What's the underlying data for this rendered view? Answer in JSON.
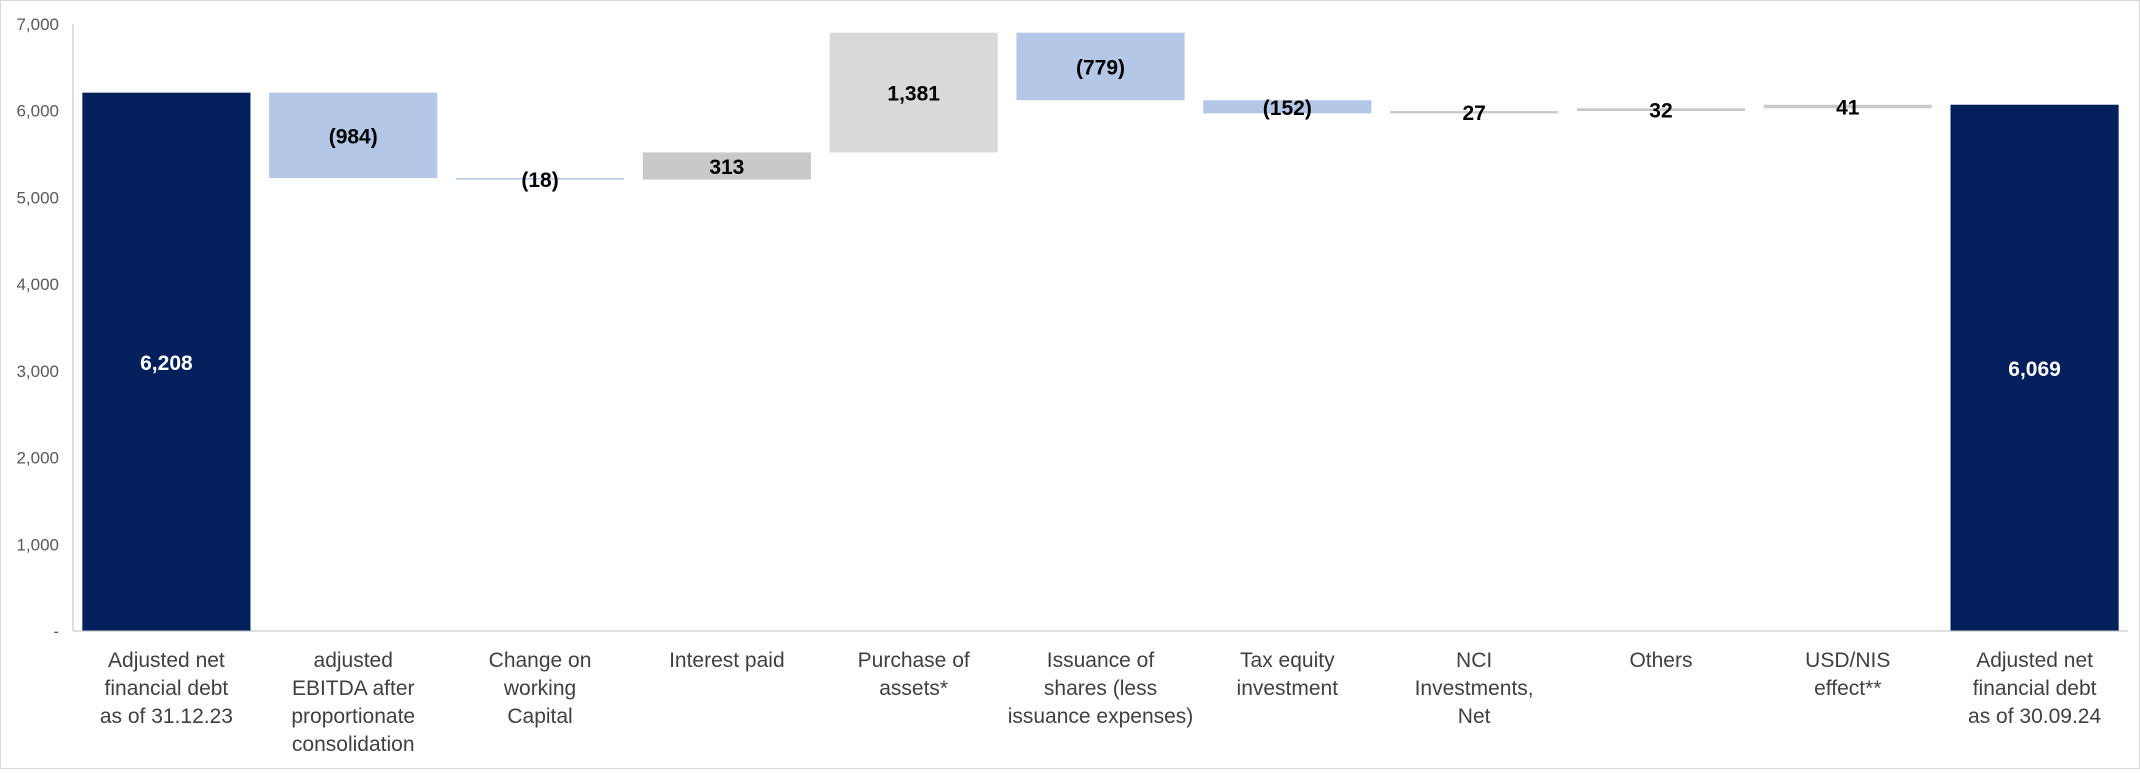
{
  "chart_data": {
    "type": "waterfall",
    "title": "",
    "xlabel": "",
    "ylabel": "",
    "ylim": [
      0,
      7000
    ],
    "yticks": [
      0,
      1000,
      2000,
      3000,
      4000,
      5000,
      6000,
      7000
    ],
    "ytick_labels": [
      "-",
      "1,000",
      "2,000",
      "3,000",
      "4,000",
      "5,000",
      "6,000",
      "7,000"
    ],
    "grid": false,
    "legend": "none",
    "steps": [
      {
        "label": "Adjusted net financial debt as of 31.12.23",
        "lines": [
          "Adjusted net",
          "financial debt",
          "as of 31.12.23"
        ],
        "kind": "total",
        "value": 6208,
        "display": "6,208"
      },
      {
        "label": "adjusted EBITDA after proportionate consolidation",
        "lines": [
          "adjusted",
          "EBITDA after",
          "proportionate",
          "consolidation"
        ],
        "kind": "decrease",
        "value": -984,
        "display": "(984)"
      },
      {
        "label": "Change on working Capital",
        "lines": [
          "Change on",
          "working",
          "Capital"
        ],
        "kind": "decrease",
        "value": -18,
        "display": "(18)"
      },
      {
        "label": "Interest paid",
        "lines": [
          "Interest paid"
        ],
        "kind": "increase",
        "value": 313,
        "display": "313"
      },
      {
        "label": "Purchase of assets*",
        "lines": [
          "Purchase of",
          "assets*"
        ],
        "kind": "increase",
        "value": 1381,
        "display": "1,381"
      },
      {
        "label": "Issuance of shares (less issuance expenses)",
        "lines": [
          "Issuance of",
          "shares (less",
          "issuance expenses)"
        ],
        "kind": "decrease",
        "value": -779,
        "display": "(779)"
      },
      {
        "label": "Tax equity investment",
        "lines": [
          "Tax equity",
          "investment"
        ],
        "kind": "decrease",
        "value": -152,
        "display": "(152)"
      },
      {
        "label": "NCI Investments, Net",
        "lines": [
          "NCI",
          "Investments,",
          "Net"
        ],
        "kind": "increase",
        "value": 27,
        "display": "27"
      },
      {
        "label": "Others",
        "lines": [
          "Others"
        ],
        "kind": "increase",
        "value": 32,
        "display": "32"
      },
      {
        "label": "USD/NIS effect**",
        "lines": [
          "USD/NIS",
          "effect**"
        ],
        "kind": "increase",
        "value": 41,
        "display": "41"
      },
      {
        "label": "Adjusted net financial debt as of 30.09.24",
        "lines": [
          "Adjusted net",
          "financial debt",
          "as of 30.09.24"
        ],
        "kind": "total",
        "value": 6069,
        "display": "6,069"
      }
    ],
    "colors": {
      "total": "#03205c",
      "decrease": "#b4c7e7",
      "increase_dark": "#c9c9c9",
      "increase_light": "#d9d9d9",
      "axis": "#bfbfbf",
      "tick_text": "#595959",
      "category_text": "#404040"
    }
  }
}
